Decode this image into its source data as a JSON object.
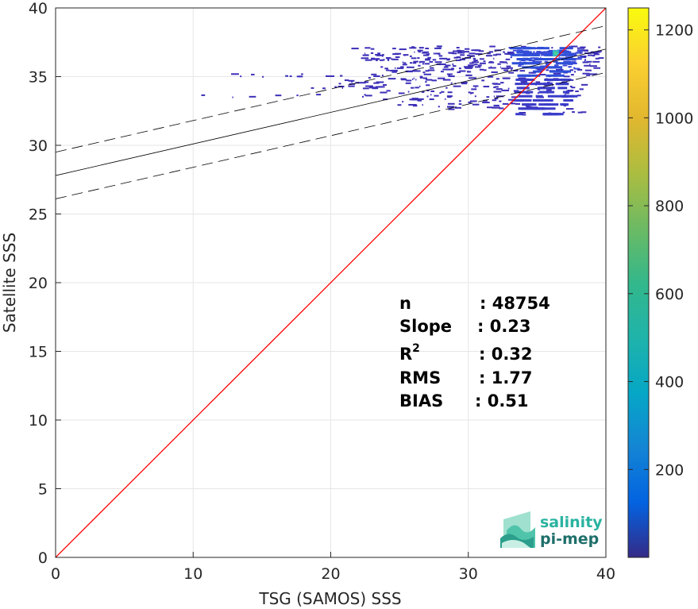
{
  "chart_data": {
    "type": "heatmap",
    "xlabel": "TSG (SAMOS) SSS",
    "ylabel": "Satellite SSS",
    "xlim": [
      0,
      40
    ],
    "ylim": [
      0,
      40
    ],
    "xticks": [
      "0",
      "10",
      "20",
      "30",
      "40"
    ],
    "yticks": [
      "0",
      "5",
      "10",
      "15",
      "20",
      "25",
      "30",
      "35",
      "40"
    ],
    "grid": true,
    "colorbar": {
      "range": [
        0,
        1250
      ],
      "ticks": [
        "200",
        "400",
        "600",
        "800",
        "1000",
        "1200"
      ],
      "colormap": "parula"
    },
    "identity_line": {
      "x": [
        0,
        40
      ],
      "y": [
        0,
        40
      ],
      "color": "#ff0000"
    },
    "regression_line": {
      "x": [
        0,
        40
      ],
      "y": [
        27.8,
        37.0
      ],
      "color": "#000000"
    },
    "confidence_bounds": [
      {
        "x": [
          0,
          40
        ],
        "y": [
          29.5,
          38.7
        ]
      },
      {
        "x": [
          0,
          40
        ],
        "y": [
          26.1,
          35.3
        ]
      }
    ],
    "stats": [
      {
        "label": "n",
        "value": ": 48754"
      },
      {
        "label": "Slope",
        "value": ": 0.23"
      },
      {
        "label": "R",
        "sup": "2",
        "value": ": 0.32"
      },
      {
        "label": "RMS",
        "value": ": 1.77"
      },
      {
        "label": "BIAS",
        "value": ": 0.51"
      }
    ],
    "density_bands": [
      {
        "x": [
          21.5,
          39.5
        ],
        "y": 37.1,
        "count": 30
      },
      {
        "x": [
          26.0,
          39.5
        ],
        "y": 36.8,
        "count": 80
      },
      {
        "x": [
          21.5,
          39.8
        ],
        "y": 36.6,
        "count": 60
      },
      {
        "x": [
          22.0,
          39.5
        ],
        "y": 36.3,
        "count": 70
      },
      {
        "x": [
          25.0,
          39.5
        ],
        "y": 36.0,
        "count": 60
      },
      {
        "x": [
          23.0,
          39.5
        ],
        "y": 35.7,
        "count": 50
      },
      {
        "x": [
          24.0,
          39.0
        ],
        "y": 35.4,
        "count": 45
      },
      {
        "x": [
          12.5,
          39.5
        ],
        "y": 35.1,
        "count": 35
      },
      {
        "x": [
          21.0,
          39.0
        ],
        "y": 34.8,
        "count": 35
      },
      {
        "x": [
          19.0,
          38.5
        ],
        "y": 34.5,
        "count": 40
      },
      {
        "x": [
          17.0,
          39.0
        ],
        "y": 34.2,
        "count": 35
      },
      {
        "x": [
          22.0,
          39.0
        ],
        "y": 33.9,
        "count": 30
      },
      {
        "x": [
          10.0,
          39.5
        ],
        "y": 33.6,
        "count": 25
      },
      {
        "x": [
          23.5,
          38.5
        ],
        "y": 33.3,
        "count": 20
      },
      {
        "x": [
          24.5,
          38.5
        ],
        "y": 33.0,
        "count": 20
      },
      {
        "x": [
          26.5,
          38.0
        ],
        "y": 32.7,
        "count": 15
      },
      {
        "x": [
          33.5,
          38.5
        ],
        "y": 32.3,
        "count": 10
      }
    ],
    "hotspot": {
      "x": 36.3,
      "y": 36.7,
      "count": 1250
    }
  },
  "logo": {
    "line1": "salinity",
    "line2": "pi-mep"
  }
}
